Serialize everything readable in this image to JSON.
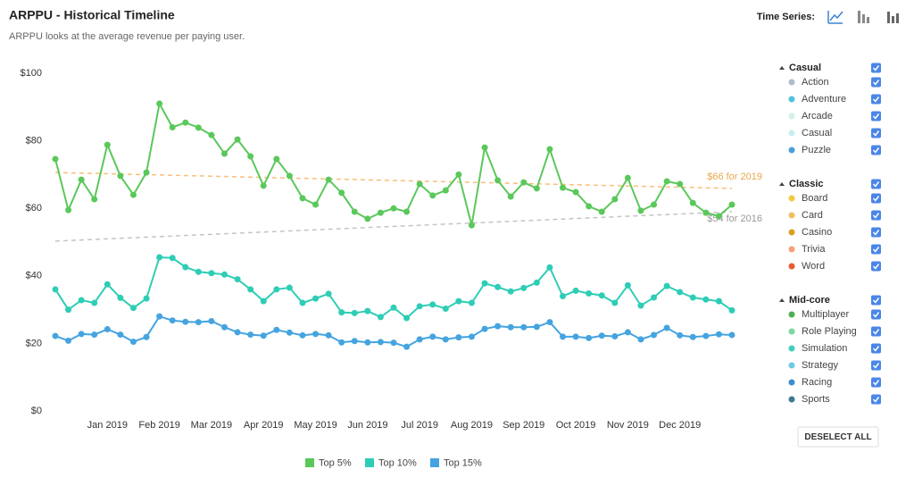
{
  "header": {
    "title": "ARPPU - Historical Timeline",
    "subtitle": "ARPPU looks at the average revenue per paying user.",
    "time_series_label": "Time Series:"
  },
  "chart_data": {
    "type": "line",
    "categories": [
      null,
      null,
      null,
      null,
      "Jan 2019",
      null,
      null,
      null,
      "Feb 2019",
      null,
      null,
      null,
      "Mar 2019",
      null,
      null,
      null,
      "Apr 2019",
      null,
      null,
      null,
      "May 2019",
      null,
      null,
      null,
      "Jun 2019",
      null,
      null,
      null,
      "Jul 2019",
      null,
      null,
      null,
      "Aug 2019",
      null,
      null,
      null,
      "Sep 2019",
      null,
      null,
      null,
      "Oct 2019",
      null,
      null,
      null,
      "Nov 2019",
      null,
      null,
      null,
      "Dec 2019",
      null,
      null,
      null,
      null
    ],
    "ylim": [
      0,
      100
    ],
    "yticks": [
      {
        "value": 0,
        "label": "$0"
      },
      {
        "value": 20,
        "label": "$20"
      },
      {
        "value": 40,
        "label": "$40"
      },
      {
        "value": 60,
        "label": "$60"
      },
      {
        "value": 80,
        "label": "$80"
      },
      {
        "value": 100,
        "label": "$100"
      }
    ],
    "grid": false,
    "series": [
      {
        "name": "Top 5%",
        "color": "#5ac85a",
        "values": [
          74.6,
          59.5,
          68.5,
          62.7,
          78.8,
          69.6,
          64,
          70.6,
          91,
          84,
          85.4,
          83.9,
          81.7,
          76.2,
          80.4,
          75.4,
          66.7,
          74.6,
          69.6,
          63,
          61.1,
          68.5,
          64.6,
          59,
          56.9,
          58.7,
          60,
          59,
          67.2,
          63.8,
          65.3,
          70,
          55,
          78,
          68.3,
          63.5,
          67.7,
          65.9,
          77.5,
          66.1,
          64.8,
          60.6,
          59,
          62.7,
          69,
          59.3,
          61.1,
          68,
          67.2,
          61.6,
          58.7,
          57.7,
          61.1
        ]
      },
      {
        "name": "Top 10%",
        "color": "#2ecdb5",
        "values": [
          36,
          30,
          32.8,
          32,
          37.5,
          33.5,
          30.5,
          33.3,
          45.5,
          45.3,
          42.6,
          41.2,
          40.8,
          40.4,
          39,
          36,
          32.5,
          36,
          36.5,
          32,
          33.3,
          34.7,
          29.2,
          29,
          29.6,
          27.8,
          30.6,
          27.5,
          31,
          31.5,
          30.3,
          32.5,
          32,
          37.8,
          36.7,
          35.4,
          36.4,
          38,
          42.5,
          34,
          35.6,
          34.8,
          34.2,
          32,
          37.2,
          31.2,
          33.6,
          37,
          35.2,
          33.6,
          33,
          32.5,
          29.8
        ]
      },
      {
        "name": "Top 15%",
        "color": "#45a4df",
        "values": [
          22.2,
          20.8,
          22.8,
          22.6,
          24.2,
          22.6,
          20.5,
          21.9,
          28,
          26.8,
          26.4,
          26.3,
          26.6,
          24.8,
          23.3,
          22.6,
          22.3,
          24,
          23.2,
          22.4,
          22.8,
          22.4,
          20.3,
          20.7,
          20.3,
          20.4,
          20.2,
          19,
          21.2,
          22,
          21.2,
          21.8,
          22,
          24.3,
          25.1,
          24.8,
          24.8,
          24.9,
          26.3,
          22,
          22,
          21.6,
          22.3,
          22.1,
          23.3,
          21.2,
          22.5,
          24.6,
          22.4,
          21.9,
          22.2,
          22.7,
          22.5
        ]
      }
    ],
    "trendlines": [
      {
        "label": "$66 for 2019",
        "color": "#f7c07a",
        "values": [
          70.6,
          65.9
        ]
      },
      {
        "label": "$54 for 2016",
        "color": "#c4c4c8",
        "values": [
          50.3,
          59
        ]
      }
    ]
  },
  "sidebar": {
    "groups": [
      {
        "name": "Casual",
        "items": [
          {
            "label": "Action",
            "color": "#b0bccb"
          },
          {
            "label": "Adventure",
            "color": "#4fc3e0"
          },
          {
            "label": "Arcade",
            "color": "#d4f0e8"
          },
          {
            "label": "Casual",
            "color": "#c7eef0"
          },
          {
            "label": "Puzzle",
            "color": "#4a9fd8"
          }
        ]
      },
      {
        "name": "Classic",
        "items": [
          {
            "label": "Board",
            "color": "#f5c842"
          },
          {
            "label": "Card",
            "color": "#f0c060"
          },
          {
            "label": "Casino",
            "color": "#d9a020"
          },
          {
            "label": "Trivia",
            "color": "#f5a07a"
          },
          {
            "label": "Word",
            "color": "#e85a30"
          }
        ]
      },
      {
        "name": "Mid-core",
        "items": [
          {
            "label": "Multiplayer",
            "color": "#4caf50"
          },
          {
            "label": "Role Playing",
            "color": "#7ed6a0"
          },
          {
            "label": "Simulation",
            "color": "#3fcfbf"
          },
          {
            "label": "Strategy",
            "color": "#6fc8e8"
          },
          {
            "label": "Racing",
            "color": "#3a8fd0"
          },
          {
            "label": "Sports",
            "color": "#3a7a90"
          }
        ]
      }
    ],
    "button": "DESELECT ALL"
  }
}
